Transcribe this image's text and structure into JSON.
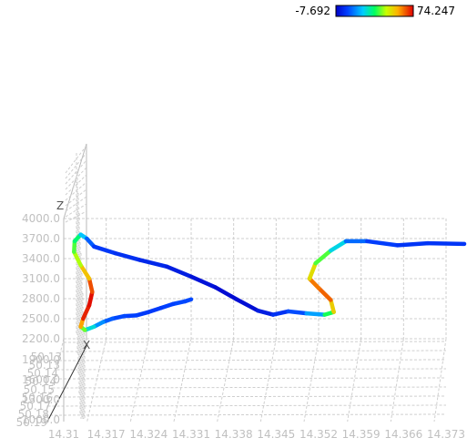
{
  "chart_data": {
    "type": "line3d",
    "title": "",
    "axis_letters": {
      "x": "X",
      "z": "Z"
    },
    "colorbar": {
      "min_label": "-7.692",
      "max_label": "74.247",
      "min": -7.692,
      "max": 74.247
    },
    "x_ticks": [
      "14.31",
      "14.317",
      "14.324",
      "14.331",
      "14.338",
      "14.345",
      "14.352",
      "14.359",
      "14.366",
      "14.373"
    ],
    "z_ticks": [
      "4000.0",
      "3700.0",
      "3400.0",
      "3100.0",
      "2800.0",
      "2500.0",
      "2200.0",
      "1900.0",
      "1600.0",
      "1300.0",
      "1000.0"
    ],
    "y_ticks": [
      "50.13",
      "50.13",
      "50.14",
      "50.14",
      "50.15",
      "50.16",
      "50.17",
      "50.18",
      "50.19"
    ],
    "zlim": [
      2200,
      4000
    ],
    "xlim": [
      14.31,
      14.373
    ],
    "grid": true,
    "series": [
      {
        "values": [
          {
            "x": 14.331,
            "z": 2790,
            "c": 5
          },
          {
            "x": 14.33,
            "z": 2760,
            "c": 6
          },
          {
            "x": 14.328,
            "z": 2720,
            "c": 5
          },
          {
            "x": 14.326,
            "z": 2660,
            "c": 4
          },
          {
            "x": 14.324,
            "z": 2600,
            "c": 3
          },
          {
            "x": 14.322,
            "z": 2550,
            "c": 4
          },
          {
            "x": 14.32,
            "z": 2540,
            "c": 5
          },
          {
            "x": 14.318,
            "z": 2500,
            "c": 6
          },
          {
            "x": 14.3165,
            "z": 2450,
            "c": 10
          },
          {
            "x": 14.315,
            "z": 2380,
            "c": 18
          },
          {
            "x": 14.3135,
            "z": 2330,
            "c": 30
          },
          {
            "x": 14.3128,
            "z": 2380,
            "c": 50
          },
          {
            "x": 14.3132,
            "z": 2500,
            "c": 68
          },
          {
            "x": 14.3142,
            "z": 2700,
            "c": 74
          },
          {
            "x": 14.3147,
            "z": 2900,
            "c": 72
          },
          {
            "x": 14.3142,
            "z": 3100,
            "c": 62
          },
          {
            "x": 14.3128,
            "z": 3300,
            "c": 48
          },
          {
            "x": 14.3117,
            "z": 3500,
            "c": 40
          },
          {
            "x": 14.3118,
            "z": 3660,
            "c": 36
          },
          {
            "x": 14.3128,
            "z": 3760,
            "c": 28
          },
          {
            "x": 14.3138,
            "z": 3700,
            "c": 12
          },
          {
            "x": 14.315,
            "z": 3580,
            "c": 4
          },
          {
            "x": 14.3185,
            "z": 3480,
            "c": 2
          },
          {
            "x": 14.3225,
            "z": 3380,
            "c": 1
          },
          {
            "x": 14.327,
            "z": 3280,
            "c": -1
          },
          {
            "x": 14.331,
            "z": 3130,
            "c": -3
          },
          {
            "x": 14.335,
            "z": 2970,
            "c": -5
          },
          {
            "x": 14.3385,
            "z": 2790,
            "c": -6
          },
          {
            "x": 14.342,
            "z": 2620,
            "c": -4
          },
          {
            "x": 14.3445,
            "z": 2560,
            "c": 0
          },
          {
            "x": 14.347,
            "z": 2610,
            "c": 4
          },
          {
            "x": 14.35,
            "z": 2580,
            "c": 8
          },
          {
            "x": 14.353,
            "z": 2560,
            "c": 24
          },
          {
            "x": 14.3545,
            "z": 2600,
            "c": 45
          },
          {
            "x": 14.354,
            "z": 2780,
            "c": 62
          },
          {
            "x": 14.352,
            "z": 2960,
            "c": 68
          },
          {
            "x": 14.3505,
            "z": 3100,
            "c": 58
          },
          {
            "x": 14.3515,
            "z": 3330,
            "c": 44
          },
          {
            "x": 14.354,
            "z": 3520,
            "c": 32
          },
          {
            "x": 14.3565,
            "z": 3660,
            "c": 14
          },
          {
            "x": 14.36,
            "z": 3660,
            "c": 5
          },
          {
            "x": 14.365,
            "z": 3600,
            "c": 3
          },
          {
            "x": 14.37,
            "z": 3630,
            "c": 2
          },
          {
            "x": 14.376,
            "z": 3620,
            "c": 3
          }
        ]
      }
    ]
  }
}
